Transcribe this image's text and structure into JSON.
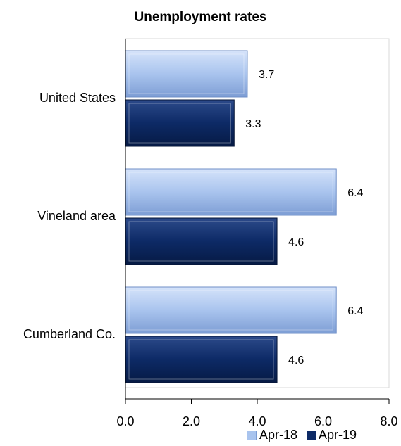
{
  "chart_data": {
    "type": "bar",
    "orientation": "horizontal",
    "title": "Unemployment rates",
    "categories": [
      "United States",
      "Vineland area",
      "Cumberland Co."
    ],
    "series": [
      {
        "name": "Apr-18",
        "values": [
          3.7,
          6.4,
          6.4
        ],
        "color": "#a9c4ee"
      },
      {
        "name": "Apr-19",
        "values": [
          3.3,
          4.6,
          4.6
        ],
        "color": "#0d2a66"
      }
    ],
    "xlim": [
      0,
      8
    ],
    "xticks": [
      "0.0",
      "2.0",
      "4.0",
      "6.0",
      "8.0"
    ],
    "value_labels": [
      [
        "3.7",
        "6.4",
        "6.4"
      ],
      [
        "3.3",
        "4.6",
        "4.6"
      ]
    ],
    "legend_position": "bottom-right",
    "grid": false
  }
}
